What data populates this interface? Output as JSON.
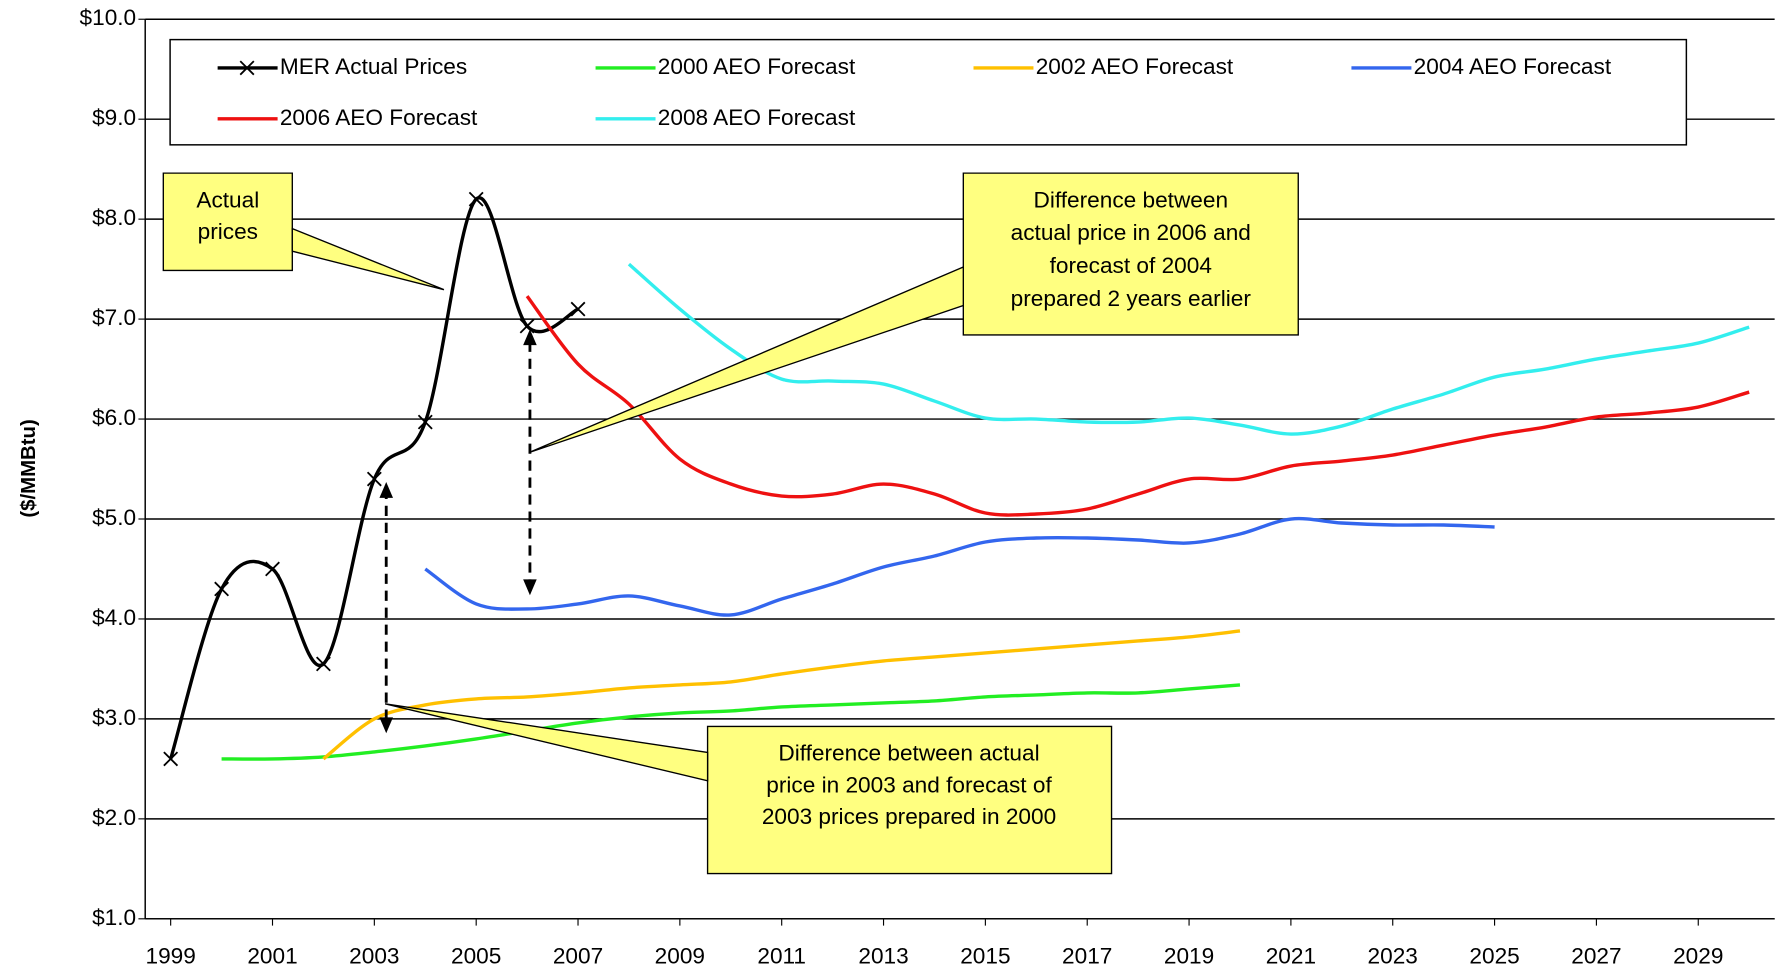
{
  "chart_data": {
    "type": "line",
    "y_label": "($/MMBtu)",
    "xlim": [
      1998.5,
      2030.5
    ],
    "xticks": [
      1999,
      2001,
      2003,
      2005,
      2007,
      2009,
      2011,
      2013,
      2015,
      2017,
      2019,
      2021,
      2023,
      2025,
      2027,
      2029
    ],
    "ylim": [
      1,
      10
    ],
    "yticks": [
      {
        "value": 1,
        "label": "$1.0"
      },
      {
        "value": 2,
        "label": "$2.0"
      },
      {
        "value": 3,
        "label": "$3.0"
      },
      {
        "value": 4,
        "label": "$4.0"
      },
      {
        "value": 5,
        "label": "$5.0"
      },
      {
        "value": 6,
        "label": "$6.0"
      },
      {
        "value": 7,
        "label": "$7.0"
      },
      {
        "value": 8,
        "label": "$8.0"
      },
      {
        "value": 9,
        "label": "$9.0"
      },
      {
        "value": 10,
        "label": "$10.0"
      }
    ],
    "grid": true,
    "series": [
      {
        "name": "MER Actual Prices",
        "color": "#000000",
        "marker": "x",
        "x": [
          1999,
          2000,
          2001,
          2002,
          2003,
          2004,
          2005,
          2006,
          2007
        ],
        "values": [
          2.6,
          4.3,
          4.5,
          3.55,
          5.4,
          5.97,
          8.2,
          6.93,
          7.1
        ]
      },
      {
        "name": "2000 AEO Forecast",
        "color": "#22ee22",
        "x": [
          2000,
          2001,
          2002,
          2003,
          2004,
          2005,
          2006,
          2007,
          2008,
          2009,
          2010,
          2011,
          2012,
          2013,
          2014,
          2015,
          2016,
          2017,
          2018,
          2019,
          2020
        ],
        "values": [
          2.6,
          2.6,
          2.62,
          2.67,
          2.73,
          2.8,
          2.88,
          2.96,
          3.02,
          3.06,
          3.08,
          3.12,
          3.14,
          3.16,
          3.18,
          3.22,
          3.24,
          3.26,
          3.26,
          3.3,
          3.34
        ]
      },
      {
        "name": "2002 AEO Forecast",
        "color": "#ffc000",
        "x": [
          2002,
          2003,
          2004,
          2005,
          2006,
          2007,
          2008,
          2009,
          2010,
          2011,
          2012,
          2013,
          2014,
          2015,
          2016,
          2017,
          2018,
          2019,
          2020
        ],
        "values": [
          2.6,
          3.0,
          3.14,
          3.2,
          3.22,
          3.26,
          3.31,
          3.34,
          3.37,
          3.45,
          3.52,
          3.58,
          3.62,
          3.66,
          3.7,
          3.74,
          3.78,
          3.82,
          3.88
        ]
      },
      {
        "name": "2004 AEO Forecast",
        "color": "#3366ee",
        "x": [
          2004,
          2005,
          2006,
          2007,
          2008,
          2009,
          2010,
          2011,
          2012,
          2013,
          2014,
          2015,
          2016,
          2017,
          2018,
          2019,
          2020,
          2021,
          2022,
          2023,
          2024,
          2025
        ],
        "values": [
          4.5,
          4.15,
          4.1,
          4.15,
          4.23,
          4.13,
          4.04,
          4.2,
          4.35,
          4.52,
          4.63,
          4.77,
          4.81,
          4.81,
          4.79,
          4.76,
          4.85,
          5.0,
          4.96,
          4.94,
          4.94,
          4.92
        ]
      },
      {
        "name": "2006 AEO Forecast",
        "color": "#ee1111",
        "x": [
          2006,
          2007,
          2008,
          2009,
          2010,
          2011,
          2012,
          2013,
          2014,
          2015,
          2016,
          2017,
          2018,
          2019,
          2020,
          2021,
          2022,
          2023,
          2024,
          2025,
          2026,
          2027,
          2028,
          2029,
          2030
        ],
        "values": [
          7.23,
          6.55,
          6.15,
          5.6,
          5.35,
          5.23,
          5.25,
          5.35,
          5.25,
          5.06,
          5.05,
          5.1,
          5.25,
          5.4,
          5.4,
          5.53,
          5.58,
          5.64,
          5.74,
          5.84,
          5.92,
          6.02,
          6.06,
          6.12,
          6.27
        ]
      },
      {
        "name": "2008 AEO Forecast",
        "color": "#33eeee",
        "x": [
          2008,
          2009,
          2010,
          2011,
          2012,
          2013,
          2014,
          2015,
          2016,
          2017,
          2018,
          2019,
          2020,
          2021,
          2022,
          2023,
          2024,
          2025,
          2026,
          2027,
          2028,
          2029,
          2030
        ],
        "values": [
          7.55,
          7.1,
          6.7,
          6.4,
          6.38,
          6.35,
          6.18,
          6.01,
          6.0,
          5.97,
          5.97,
          6.01,
          5.94,
          5.85,
          5.93,
          6.1,
          6.25,
          6.42,
          6.5,
          6.6,
          6.68,
          6.76,
          6.92
        ]
      }
    ],
    "annotations": [
      {
        "text": [
          "Actual",
          "prices"
        ]
      },
      {
        "text": [
          "Difference between",
          "actual price in 2006 and",
          "forecast of 2004",
          "prepared 2 years earlier"
        ]
      },
      {
        "text": [
          "Difference between actual",
          "price in 2003 and forecast of",
          "2003 prices prepared in 2000"
        ]
      }
    ]
  }
}
